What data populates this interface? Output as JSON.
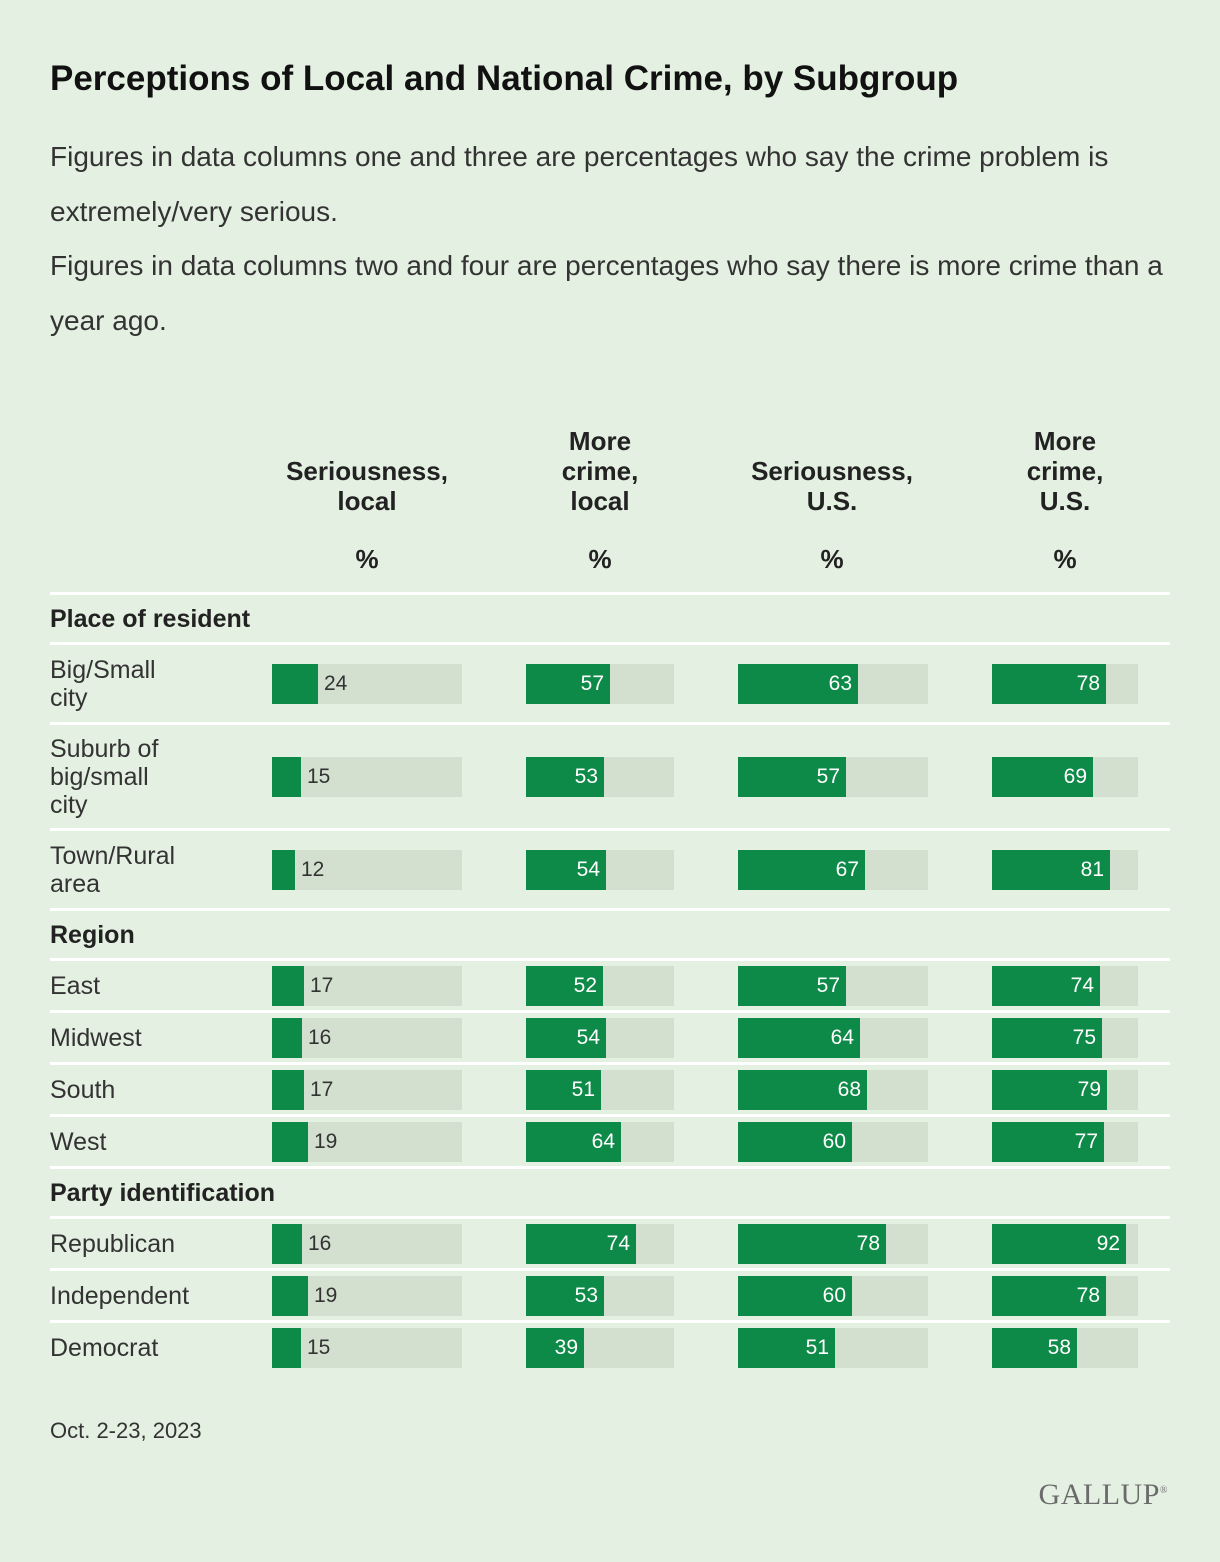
{
  "title": "Perceptions of Local and National Crime, by Subgroup",
  "subtitle_lines": [
    "Figures in data columns one and three are percentages who say the crime problem is extremely/very serious.",
    "Figures in data columns two and four are percentages who say there is more crime than a year ago."
  ],
  "unit_label": "%",
  "footnote": "Oct. 2-23, 2023",
  "source": "GALLUP",
  "colors": {
    "background": "#e4f0e1",
    "bar": "#0e8a48",
    "track": "#d3e0d0"
  },
  "chart_data": {
    "type": "bar",
    "orientation": "horizontal",
    "title": "Perceptions of Local and National Crime, by Subgroup",
    "columns": [
      {
        "key": "ser_local",
        "label": [
          "Seriousness,",
          "local"
        ],
        "max": 100
      },
      {
        "key": "more_local",
        "label": [
          "More",
          "crime,",
          "local"
        ],
        "max": 100
      },
      {
        "key": "ser_us",
        "label": [
          "Seriousness,",
          "U.S."
        ],
        "max": 100
      },
      {
        "key": "more_us",
        "label": [
          "More",
          "crime,",
          "U.S."
        ],
        "max": 100
      }
    ],
    "groups": [
      {
        "name": "Place of resident",
        "rows": [
          {
            "label": [
              "Big/Small",
              "city"
            ],
            "values": [
              24,
              57,
              63,
              78
            ]
          },
          {
            "label": [
              "Suburb of",
              "big/small",
              "city"
            ],
            "values": [
              15,
              53,
              57,
              69
            ]
          },
          {
            "label": [
              "Town/Rural",
              "area"
            ],
            "values": [
              12,
              54,
              67,
              81
            ]
          }
        ]
      },
      {
        "name": "Region",
        "rows": [
          {
            "label": [
              "East"
            ],
            "values": [
              17,
              52,
              57,
              74
            ]
          },
          {
            "label": [
              "Midwest"
            ],
            "values": [
              16,
              54,
              64,
              75
            ]
          },
          {
            "label": [
              "South"
            ],
            "values": [
              17,
              51,
              68,
              79
            ]
          },
          {
            "label": [
              "West"
            ],
            "values": [
              19,
              64,
              60,
              77
            ]
          }
        ]
      },
      {
        "name": "Party identification",
        "rows": [
          {
            "label": [
              "Republican"
            ],
            "values": [
              16,
              74,
              78,
              92
            ]
          },
          {
            "label": [
              "Independent"
            ],
            "values": [
              19,
              53,
              60,
              78
            ]
          },
          {
            "label": [
              "Democrat"
            ],
            "values": [
              15,
              39,
              51,
              58
            ]
          }
        ]
      }
    ]
  }
}
